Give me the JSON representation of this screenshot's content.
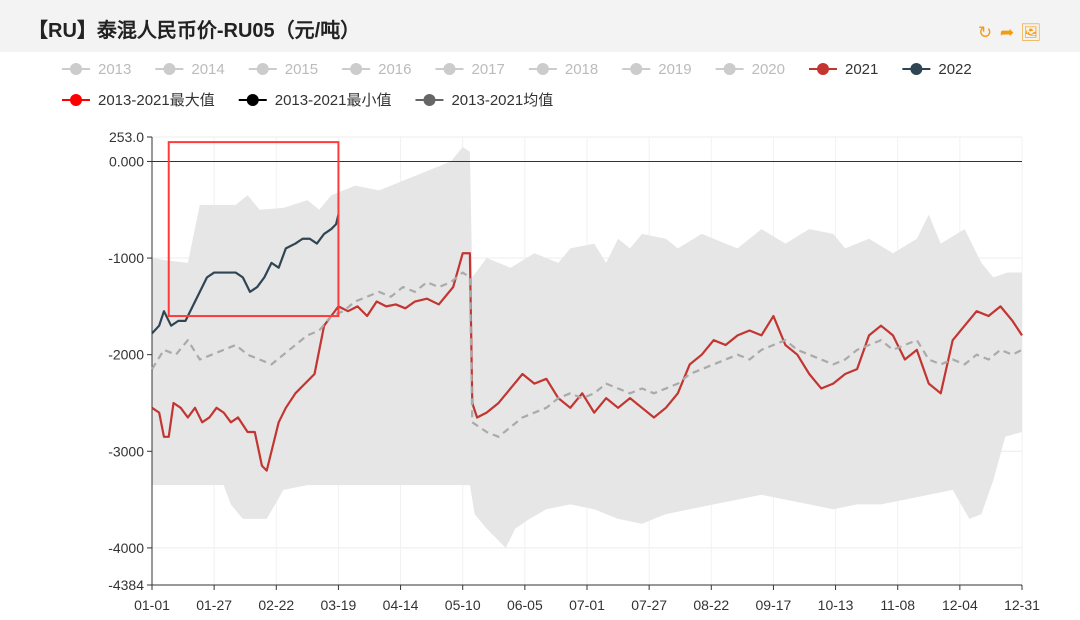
{
  "title": "【RU】泰混人民币价-RU05（元/吨）",
  "toolbar": {
    "refresh_icon": "refresh-icon",
    "redo_icon": "redo-arrow-icon",
    "save_icon": "save-image-icon"
  },
  "colors": {
    "accent": "#f39c12",
    "series_2021": "#c23531",
    "series_2022": "#2f4554",
    "range_band": "#e6e6e6",
    "avg": "#aaaaaa",
    "inactive": "#cccccc",
    "highlight_box": "#ff3b3b"
  },
  "legend": [
    {
      "name": "2013",
      "active": false
    },
    {
      "name": "2014",
      "active": false
    },
    {
      "name": "2015",
      "active": false
    },
    {
      "name": "2016",
      "active": false
    },
    {
      "name": "2017",
      "active": false
    },
    {
      "name": "2018",
      "active": false
    },
    {
      "name": "2019",
      "active": false
    },
    {
      "name": "2020",
      "active": false
    },
    {
      "name": "2021",
      "active": true
    },
    {
      "name": "2022",
      "active": true
    },
    {
      "name": "2013-2021最大值",
      "active": true
    },
    {
      "name": "2013-2021最小值",
      "active": true
    },
    {
      "name": "2013-2021均值",
      "active": true
    }
  ],
  "chart_data": {
    "type": "line",
    "title": "【RU】泰混人民币价-RU05（元/吨）",
    "xlabel": "",
    "ylabel": "",
    "x_ticks": [
      "01-01",
      "01-27",
      "02-22",
      "03-19",
      "04-14",
      "05-10",
      "06-05",
      "07-01",
      "07-27",
      "08-22",
      "09-17",
      "10-13",
      "11-08",
      "12-04",
      "12-31"
    ],
    "y_ticks": [
      253.0,
      0.0,
      -1000,
      -2000,
      -3000,
      -4000,
      -4384
    ],
    "y_tick_labels": [
      "253.0",
      "0.000",
      "-1000",
      "-2000",
      "-3000",
      "-4000",
      "-4384"
    ],
    "ylim": [
      -4384,
      253
    ],
    "x_range_days": [
      0,
      364
    ],
    "legend_position": "top",
    "grid": true,
    "highlight_box": {
      "x_from_day": 7,
      "x_to_day": 78,
      "y_from": 200,
      "y_to": -1600
    },
    "band": {
      "max": [
        [
          0,
          -1000
        ],
        [
          5,
          -1020
        ],
        [
          15,
          -1050
        ],
        [
          20,
          -450
        ],
        [
          35,
          -450
        ],
        [
          40,
          -350
        ],
        [
          45,
          -500
        ],
        [
          55,
          -480
        ],
        [
          65,
          -400
        ],
        [
          70,
          -500
        ],
        [
          75,
          -350
        ],
        [
          85,
          -250
        ],
        [
          95,
          -300
        ],
        [
          105,
          -200
        ],
        [
          115,
          -100
        ],
        [
          125,
          0
        ],
        [
          130,
          150
        ],
        [
          133,
          100
        ],
        [
          134,
          -1200
        ],
        [
          140,
          -1000
        ],
        [
          150,
          -1100
        ],
        [
          160,
          -950
        ],
        [
          170,
          -1050
        ],
        [
          175,
          -900
        ],
        [
          185,
          -850
        ],
        [
          190,
          -1050
        ],
        [
          195,
          -800
        ],
        [
          200,
          -900
        ],
        [
          205,
          -750
        ],
        [
          215,
          -800
        ],
        [
          220,
          -900
        ],
        [
          230,
          -750
        ],
        [
          240,
          -850
        ],
        [
          245,
          -900
        ],
        [
          255,
          -700
        ],
        [
          265,
          -850
        ],
        [
          275,
          -700
        ],
        [
          285,
          -750
        ],
        [
          290,
          -900
        ],
        [
          300,
          -800
        ],
        [
          310,
          -950
        ],
        [
          320,
          -800
        ],
        [
          325,
          -550
        ],
        [
          330,
          -850
        ],
        [
          340,
          -700
        ],
        [
          347,
          -1050
        ],
        [
          352,
          -1200
        ],
        [
          358,
          -1150
        ],
        [
          364,
          -1150
        ]
      ],
      "min": [
        [
          0,
          -3350
        ],
        [
          10,
          -3350
        ],
        [
          20,
          -3350
        ],
        [
          30,
          -3350
        ],
        [
          33,
          -3550
        ],
        [
          38,
          -3700
        ],
        [
          48,
          -3700
        ],
        [
          55,
          -3400
        ],
        [
          65,
          -3350
        ],
        [
          75,
          -3350
        ],
        [
          85,
          -3350
        ],
        [
          95,
          -3350
        ],
        [
          105,
          -3350
        ],
        [
          115,
          -3350
        ],
        [
          125,
          -3350
        ],
        [
          133,
          -3350
        ],
        [
          135,
          -3650
        ],
        [
          140,
          -3800
        ],
        [
          148,
          -4000
        ],
        [
          152,
          -3800
        ],
        [
          158,
          -3700
        ],
        [
          165,
          -3600
        ],
        [
          175,
          -3550
        ],
        [
          185,
          -3600
        ],
        [
          195,
          -3700
        ],
        [
          205,
          -3750
        ],
        [
          215,
          -3650
        ],
        [
          225,
          -3600
        ],
        [
          235,
          -3550
        ],
        [
          245,
          -3500
        ],
        [
          255,
          -3450
        ],
        [
          265,
          -3500
        ],
        [
          275,
          -3550
        ],
        [
          285,
          -3600
        ],
        [
          295,
          -3550
        ],
        [
          305,
          -3550
        ],
        [
          315,
          -3500
        ],
        [
          325,
          -3450
        ],
        [
          335,
          -3400
        ],
        [
          342,
          -3700
        ],
        [
          347,
          -3650
        ],
        [
          352,
          -3300
        ],
        [
          357,
          -2850
        ],
        [
          364,
          -2800
        ]
      ]
    },
    "series": [
      {
        "name": "2021",
        "color": "#c23531",
        "dash": false,
        "points": [
          [
            0,
            -2550
          ],
          [
            3,
            -2600
          ],
          [
            5,
            -2850
          ],
          [
            7,
            -2850
          ],
          [
            9,
            -2500
          ],
          [
            12,
            -2550
          ],
          [
            15,
            -2650
          ],
          [
            18,
            -2550
          ],
          [
            21,
            -2700
          ],
          [
            24,
            -2650
          ],
          [
            27,
            -2550
          ],
          [
            30,
            -2600
          ],
          [
            33,
            -2700
          ],
          [
            36,
            -2650
          ],
          [
            40,
            -2800
          ],
          [
            43,
            -2800
          ],
          [
            46,
            -3150
          ],
          [
            48,
            -3200
          ],
          [
            50,
            -3000
          ],
          [
            53,
            -2700
          ],
          [
            56,
            -2550
          ],
          [
            60,
            -2400
          ],
          [
            64,
            -2300
          ],
          [
            68,
            -2200
          ],
          [
            72,
            -1700
          ],
          [
            75,
            -1600
          ],
          [
            78,
            -1500
          ],
          [
            82,
            -1550
          ],
          [
            86,
            -1500
          ],
          [
            90,
            -1600
          ],
          [
            94,
            -1450
          ],
          [
            98,
            -1500
          ],
          [
            102,
            -1480
          ],
          [
            106,
            -1520
          ],
          [
            110,
            -1450
          ],
          [
            115,
            -1420
          ],
          [
            120,
            -1480
          ],
          [
            126,
            -1300
          ],
          [
            130,
            -950
          ],
          [
            133,
            -950
          ],
          [
            134,
            -2500
          ],
          [
            136,
            -2650
          ],
          [
            140,
            -2600
          ],
          [
            145,
            -2500
          ],
          [
            150,
            -2350
          ],
          [
            155,
            -2200
          ],
          [
            160,
            -2300
          ],
          [
            165,
            -2250
          ],
          [
            170,
            -2450
          ],
          [
            175,
            -2550
          ],
          [
            180,
            -2400
          ],
          [
            185,
            -2600
          ],
          [
            190,
            -2450
          ],
          [
            195,
            -2550
          ],
          [
            200,
            -2450
          ],
          [
            205,
            -2550
          ],
          [
            210,
            -2650
          ],
          [
            215,
            -2550
          ],
          [
            220,
            -2400
          ],
          [
            225,
            -2100
          ],
          [
            230,
            -2000
          ],
          [
            235,
            -1850
          ],
          [
            240,
            -1900
          ],
          [
            245,
            -1800
          ],
          [
            250,
            -1750
          ],
          [
            255,
            -1800
          ],
          [
            260,
            -1600
          ],
          [
            265,
            -1900
          ],
          [
            270,
            -2000
          ],
          [
            275,
            -2200
          ],
          [
            280,
            -2350
          ],
          [
            285,
            -2300
          ],
          [
            290,
            -2200
          ],
          [
            295,
            -2150
          ],
          [
            300,
            -1800
          ],
          [
            305,
            -1700
          ],
          [
            310,
            -1800
          ],
          [
            315,
            -2050
          ],
          [
            320,
            -1950
          ],
          [
            325,
            -2300
          ],
          [
            330,
            -2400
          ],
          [
            335,
            -1850
          ],
          [
            340,
            -1700
          ],
          [
            345,
            -1550
          ],
          [
            350,
            -1600
          ],
          [
            355,
            -1500
          ],
          [
            360,
            -1650
          ],
          [
            364,
            -1800
          ]
        ]
      },
      {
        "name": "2022",
        "color": "#2f4554",
        "dash": false,
        "points": [
          [
            0,
            -1780
          ],
          [
            3,
            -1700
          ],
          [
            5,
            -1550
          ],
          [
            8,
            -1700
          ],
          [
            11,
            -1650
          ],
          [
            14,
            -1650
          ],
          [
            17,
            -1500
          ],
          [
            20,
            -1350
          ],
          [
            23,
            -1200
          ],
          [
            26,
            -1150
          ],
          [
            30,
            -1150
          ],
          [
            35,
            -1150
          ],
          [
            38,
            -1200
          ],
          [
            41,
            -1350
          ],
          [
            44,
            -1300
          ],
          [
            47,
            -1200
          ],
          [
            50,
            -1050
          ],
          [
            53,
            -1100
          ],
          [
            56,
            -900
          ],
          [
            60,
            -850
          ],
          [
            63,
            -800
          ],
          [
            66,
            -800
          ],
          [
            69,
            -850
          ],
          [
            72,
            -750
          ],
          [
            75,
            -700
          ],
          [
            77,
            -650
          ],
          [
            78,
            -550
          ]
        ]
      },
      {
        "name": "2013-2021均值",
        "color": "#aaaaaa",
        "dash": true,
        "points": [
          [
            0,
            -2150
          ],
          [
            5,
            -1950
          ],
          [
            10,
            -2000
          ],
          [
            15,
            -1850
          ],
          [
            20,
            -2050
          ],
          [
            25,
            -2000
          ],
          [
            30,
            -1950
          ],
          [
            35,
            -1900
          ],
          [
            40,
            -2000
          ],
          [
            45,
            -2050
          ],
          [
            50,
            -2100
          ],
          [
            55,
            -2000
          ],
          [
            60,
            -1900
          ],
          [
            65,
            -1800
          ],
          [
            70,
            -1750
          ],
          [
            75,
            -1600
          ],
          [
            80,
            -1550
          ],
          [
            85,
            -1450
          ],
          [
            90,
            -1400
          ],
          [
            95,
            -1350
          ],
          [
            100,
            -1400
          ],
          [
            105,
            -1300
          ],
          [
            110,
            -1350
          ],
          [
            115,
            -1250
          ],
          [
            120,
            -1300
          ],
          [
            125,
            -1250
          ],
          [
            130,
            -1150
          ],
          [
            133,
            -1200
          ],
          [
            134,
            -2700
          ],
          [
            140,
            -2800
          ],
          [
            145,
            -2850
          ],
          [
            150,
            -2750
          ],
          [
            155,
            -2650
          ],
          [
            160,
            -2600
          ],
          [
            165,
            -2550
          ],
          [
            170,
            -2450
          ],
          [
            175,
            -2400
          ],
          [
            180,
            -2450
          ],
          [
            185,
            -2400
          ],
          [
            190,
            -2300
          ],
          [
            195,
            -2350
          ],
          [
            200,
            -2400
          ],
          [
            205,
            -2350
          ],
          [
            210,
            -2400
          ],
          [
            215,
            -2350
          ],
          [
            220,
            -2300
          ],
          [
            225,
            -2200
          ],
          [
            230,
            -2150
          ],
          [
            235,
            -2100
          ],
          [
            240,
            -2050
          ],
          [
            245,
            -2000
          ],
          [
            250,
            -2050
          ],
          [
            255,
            -1950
          ],
          [
            260,
            -1900
          ],
          [
            265,
            -1850
          ],
          [
            270,
            -1950
          ],
          [
            275,
            -2000
          ],
          [
            280,
            -2050
          ],
          [
            285,
            -2100
          ],
          [
            290,
            -2050
          ],
          [
            295,
            -1950
          ],
          [
            300,
            -1900
          ],
          [
            305,
            -1850
          ],
          [
            310,
            -1950
          ],
          [
            315,
            -1900
          ],
          [
            320,
            -1850
          ],
          [
            325,
            -2050
          ],
          [
            330,
            -2100
          ],
          [
            335,
            -2050
          ],
          [
            340,
            -2100
          ],
          [
            345,
            -2000
          ],
          [
            350,
            -2050
          ],
          [
            355,
            -1950
          ],
          [
            360,
            -2000
          ],
          [
            364,
            -1950
          ]
        ]
      }
    ]
  }
}
